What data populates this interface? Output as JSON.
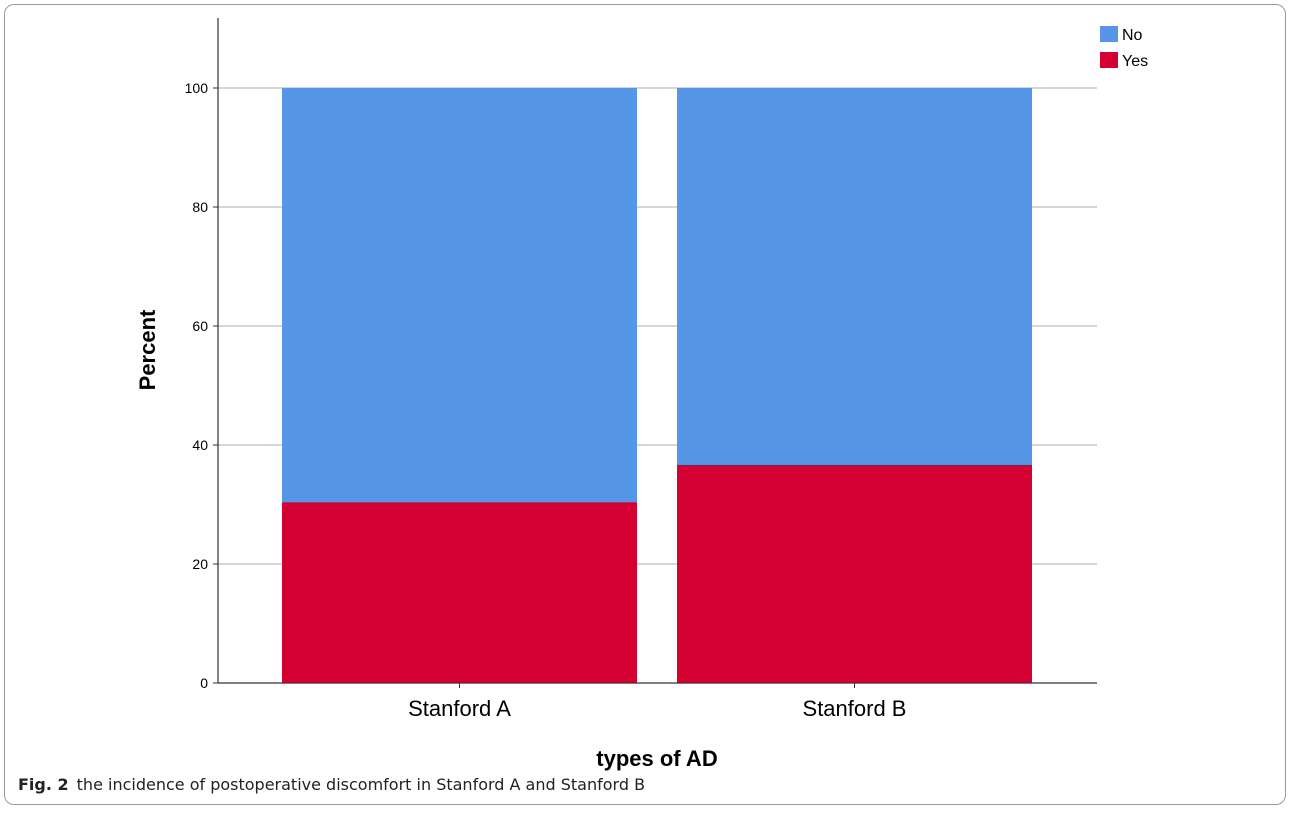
{
  "chart_data": {
    "type": "bar",
    "stacked": true,
    "categories": [
      "Stanford A",
      "Stanford B"
    ],
    "series": [
      {
        "name": "Yes",
        "values": [
          30.4,
          36.7
        ],
        "color": "#d50032"
      },
      {
        "name": "No",
        "values": [
          69.6,
          63.3
        ],
        "color": "#5596e6"
      }
    ],
    "xlabel": "types of AD",
    "ylabel": "Percent",
    "ylim": [
      0,
      100
    ],
    "yticks": [
      0,
      20,
      40,
      60,
      80,
      100
    ],
    "grid": true,
    "legend_position": "top-right"
  },
  "caption": {
    "label": "Fig. 2",
    "text": "the incidence of postoperative discomfort in Stanford A and Stanford B"
  }
}
